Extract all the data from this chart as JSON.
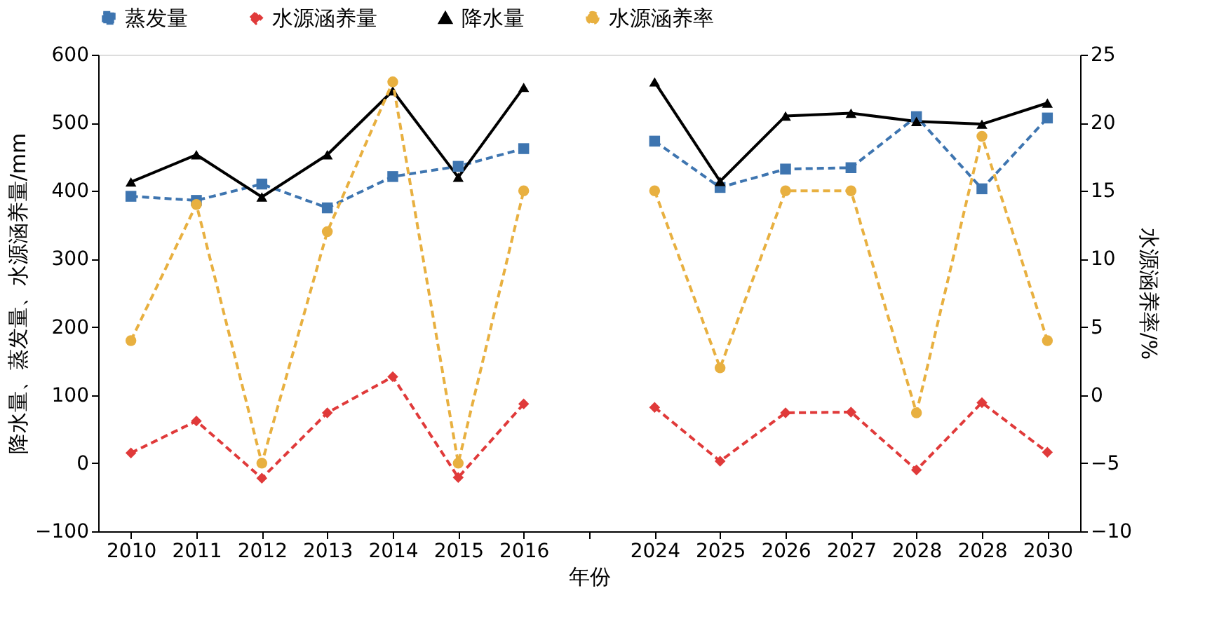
{
  "chart_data": {
    "type": "line",
    "xlabel": "年份",
    "ylabel": "降水量、蒸发量、水源涵养量/mm",
    "y2label": "水源涵养率/%",
    "categories": [
      "2010",
      "2011",
      "2012",
      "2013",
      "2014",
      "2015",
      "2016",
      null,
      "2024",
      "2025",
      "2026",
      "2027",
      "2028",
      "2028",
      "2030"
    ],
    "ylim": [
      -100,
      600
    ],
    "yticks": [
      -100,
      0,
      100,
      200,
      300,
      400,
      500,
      600
    ],
    "y2lim": [
      -10,
      25
    ],
    "y2ticks": [
      -10,
      -5,
      0,
      5,
      10,
      15,
      20,
      25
    ],
    "legend": "top",
    "grid": false,
    "series": [
      {
        "name": "蒸发量",
        "color": "#3e75b0",
        "marker": "square",
        "line_style": "dashed",
        "axis": "y",
        "values": [
          392,
          386,
          410,
          375,
          421,
          436,
          462,
          null,
          473,
          405,
          432,
          434,
          509,
          403,
          507
        ]
      },
      {
        "name": "水源涵养量",
        "color": "#e03a3a",
        "marker": "diamond",
        "line_style": "dashed",
        "axis": "y",
        "values": [
          15,
          62,
          -22,
          74,
          127,
          -21,
          87,
          null,
          82,
          3,
          74,
          75,
          -10,
          89,
          16
        ]
      },
      {
        "name": "降水量",
        "color": "#000000",
        "marker": "triangle",
        "line_style": "solid",
        "axis": "y",
        "values": [
          413,
          453,
          391,
          453,
          547,
          420,
          552,
          null,
          560,
          414,
          510,
          514,
          502,
          498,
          529
        ]
      },
      {
        "name": "水源涵养率",
        "color": "#e8b040",
        "marker": "circle",
        "line_style": "dashed",
        "axis": "y2",
        "values": [
          4,
          14,
          -5,
          12,
          23,
          -5,
          15,
          null,
          15,
          2,
          15,
          15,
          -1.3,
          19,
          4
        ]
      }
    ]
  }
}
